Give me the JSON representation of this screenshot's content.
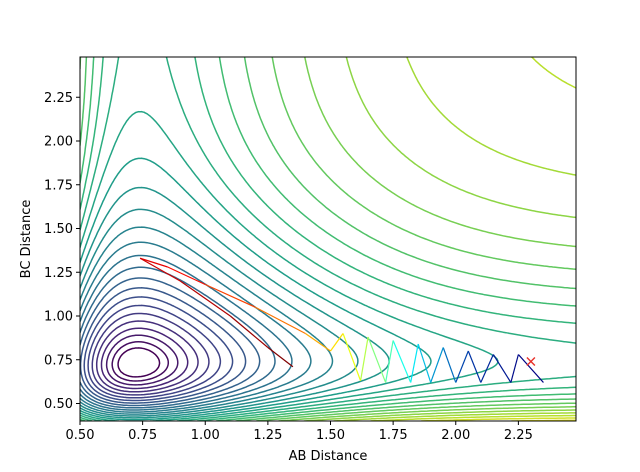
{
  "chart_data": {
    "type": "contour",
    "title": "",
    "xlabel": "AB Distance",
    "ylabel": "BC Distance",
    "xlim": [
      0.5,
      2.48
    ],
    "ylim": [
      0.4,
      2.48
    ],
    "xticks": [
      "0.50",
      "0.75",
      "1.00",
      "1.25",
      "1.50",
      "1.75",
      "2.00",
      "2.25"
    ],
    "yticks": [
      "0.50",
      "0.75",
      "1.00",
      "1.25",
      "1.50",
      "1.75",
      "2.00",
      "2.25"
    ],
    "grid": false,
    "legend": "none",
    "colormap": "viridis",
    "contour_levels": 30,
    "trajectory": {
      "start": [
        2.3,
        0.74
      ],
      "start_marker": "x",
      "start_color": "#e8312a",
      "points": [
        [
          2.35,
          0.62
        ],
        [
          2.25,
          0.78
        ],
        [
          2.22,
          0.62
        ],
        [
          2.15,
          0.78
        ],
        [
          2.1,
          0.62
        ],
        [
          2.05,
          0.8
        ],
        [
          2.0,
          0.62
        ],
        [
          1.95,
          0.82
        ],
        [
          1.9,
          0.62
        ],
        [
          1.85,
          0.84
        ],
        [
          1.82,
          0.62
        ],
        [
          1.75,
          0.86
        ],
        [
          1.72,
          0.62
        ],
        [
          1.65,
          0.88
        ],
        [
          1.62,
          0.63
        ],
        [
          1.55,
          0.9
        ],
        [
          1.5,
          0.8
        ],
        [
          1.4,
          0.9
        ],
        [
          1.2,
          1.05
        ],
        [
          1.0,
          1.18
        ],
        [
          0.85,
          1.28
        ],
        [
          0.74,
          1.33
        ],
        [
          0.9,
          1.2
        ],
        [
          1.1,
          1.0
        ],
        [
          1.25,
          0.82
        ],
        [
          1.35,
          0.71
        ]
      ],
      "colormap": "jet"
    }
  }
}
